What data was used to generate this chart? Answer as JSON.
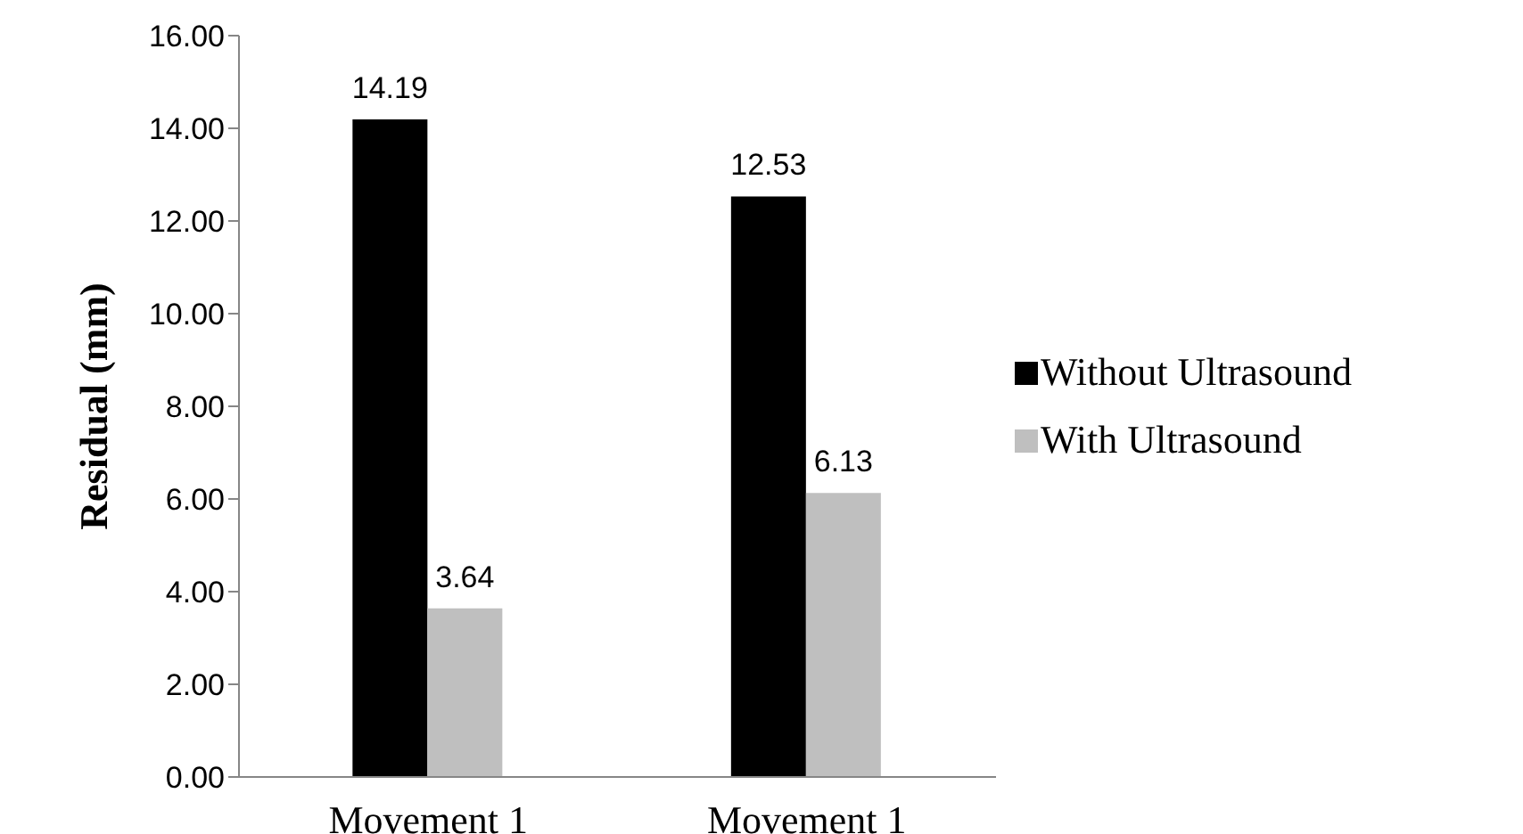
{
  "chart_data": {
    "type": "bar",
    "ylabel": "Residual (mm)",
    "categories": [
      "Movement 1",
      "Movement 1"
    ],
    "series": [
      {
        "name": "Without Ultrasound",
        "color": "#000000",
        "values": [
          14.19,
          12.53
        ]
      },
      {
        "name": "With Ultrasound",
        "color": "#bfbfbf",
        "values": [
          3.64,
          6.13
        ]
      }
    ],
    "ylim": [
      0,
      16
    ],
    "yticks": [
      {
        "value": 0,
        "label": "0.00"
      },
      {
        "value": 2,
        "label": "2.00"
      },
      {
        "value": 4,
        "label": "4.00"
      },
      {
        "value": 6,
        "label": "6.00"
      },
      {
        "value": 8,
        "label": "8.00"
      },
      {
        "value": 10,
        "label": "10.00"
      },
      {
        "value": 12,
        "label": "12.00"
      },
      {
        "value": 14,
        "label": "14.00"
      },
      {
        "value": 16,
        "label": "16.00"
      }
    ],
    "data_labels": true,
    "grid": false,
    "legend": "right"
  }
}
